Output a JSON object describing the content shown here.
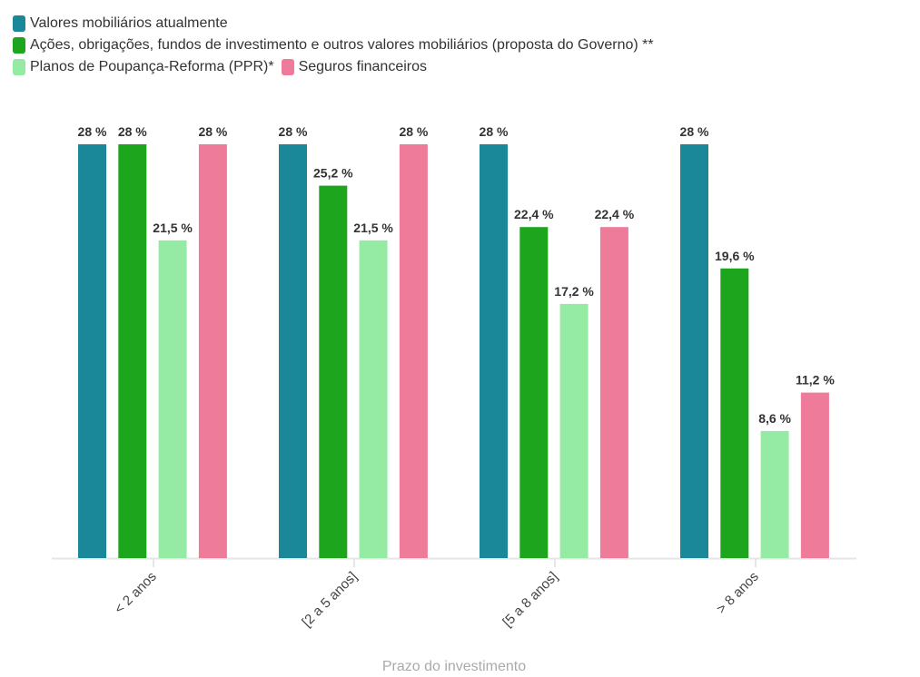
{
  "chart_data": {
    "type": "bar",
    "title": "",
    "xlabel": "Prazo do investimento",
    "ylabel": "",
    "ylim": [
      0,
      28
    ],
    "grid": false,
    "legend_position": "top-left",
    "categories": [
      "< 2 anos",
      "[2 a 5 anos]",
      "[5 a 8 anos]",
      "> 8 anos"
    ],
    "series": [
      {
        "name": "Valores mobiliários atualmente",
        "color": "#1a8899",
        "values": [
          28,
          28,
          28,
          28
        ],
        "labels": [
          "28 %",
          "28 %",
          "28 %",
          "28 %"
        ]
      },
      {
        "name": "Ações, obrigações, fundos de investimento e outros valores mobiliários (proposta do Governo) **",
        "color": "#1ea51e",
        "values": [
          28,
          25.2,
          22.4,
          19.6
        ],
        "labels": [
          "28 %",
          "25,2 %",
          "22,4 %",
          "19,6 %"
        ]
      },
      {
        "name": "Planos de Poupança-Reforma (PPR)*",
        "color": "#95eba3",
        "values": [
          21.5,
          21.5,
          17.2,
          8.6
        ],
        "labels": [
          "21,5 %",
          "21,5 %",
          "17,2 %",
          "8,6 %"
        ]
      },
      {
        "name": "Seguros financeiros",
        "color": "#ef7b9a",
        "values": [
          28,
          28,
          22.4,
          11.2
        ],
        "labels": [
          "28 %",
          "28 %",
          "22,4 %",
          "11,2 %"
        ]
      }
    ]
  }
}
